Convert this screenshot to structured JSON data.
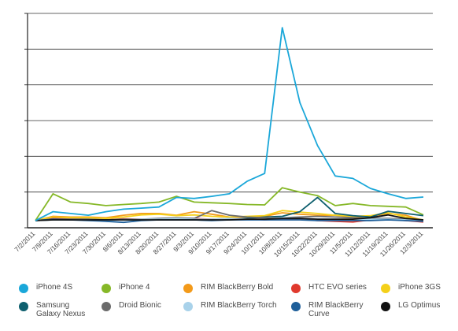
{
  "chart_data": {
    "type": "line",
    "title": "",
    "xlabel": "",
    "ylabel": "",
    "ylim": [
      0,
      6
    ],
    "grid": "horizontal",
    "legend_position": "bottom",
    "categories": [
      "7/2/2011",
      "7/9/2011",
      "7/16/2011",
      "7/23/2011",
      "7/30/2011",
      "8/6/2011",
      "8/13/2011",
      "8/20/2011",
      "8/27/2011",
      "9/3/2011",
      "9/10/2011",
      "9/17/2011",
      "9/24/2011",
      "10/1/2011",
      "10/8/2011",
      "10/15/2011",
      "10/22/2011",
      "10/29/2011",
      "11/5/2011",
      "11/12/2011",
      "11/19/2011",
      "11/26/2011",
      "12/3/2011"
    ],
    "series": [
      {
        "name": "iPhone 4S",
        "color": "#1aa7d9",
        "values": [
          0.2,
          0.45,
          0.4,
          0.35,
          0.45,
          0.52,
          0.55,
          0.58,
          0.85,
          0.82,
          0.88,
          0.95,
          1.3,
          1.52,
          5.6,
          3.5,
          2.3,
          1.45,
          1.38,
          1.1,
          0.95,
          0.82,
          0.86
        ]
      },
      {
        "name": "iPhone 4",
        "color": "#86b828",
        "values": [
          0.2,
          0.95,
          0.72,
          0.68,
          0.62,
          0.65,
          0.68,
          0.72,
          0.88,
          0.72,
          0.7,
          0.68,
          0.65,
          0.64,
          1.12,
          1.0,
          0.9,
          0.62,
          0.68,
          0.62,
          0.6,
          0.58,
          0.36
        ]
      },
      {
        "name": "RIM BlackBerry Bold",
        "color": "#f39a1a",
        "values": [
          0.2,
          0.32,
          0.3,
          0.3,
          0.28,
          0.35,
          0.4,
          0.4,
          0.35,
          0.45,
          0.38,
          0.3,
          0.3,
          0.32,
          0.42,
          0.38,
          0.35,
          0.35,
          0.3,
          0.32,
          0.4,
          0.35,
          0.2
        ]
      },
      {
        "name": "HTC EVO series",
        "color": "#e0392d",
        "values": [
          0.2,
          0.28,
          0.25,
          0.24,
          0.22,
          0.25,
          0.24,
          0.22,
          0.25,
          0.26,
          0.24,
          0.26,
          0.25,
          0.22,
          0.25,
          0.24,
          0.2,
          0.18,
          0.16,
          0.22,
          0.24,
          0.2,
          0.16
        ]
      },
      {
        "name": "iPhone 3GS",
        "color": "#f4d01a",
        "values": [
          0.2,
          0.3,
          0.28,
          0.28,
          0.26,
          0.3,
          0.36,
          0.38,
          0.34,
          0.36,
          0.32,
          0.3,
          0.32,
          0.34,
          0.48,
          0.44,
          0.4,
          0.35,
          0.32,
          0.34,
          0.42,
          0.3,
          0.22
        ]
      },
      {
        "name": "Samsung\nGalaxy Nexus",
        "color": "#0e5f6e",
        "values": [
          0.2,
          0.22,
          0.22,
          0.22,
          0.22,
          0.22,
          0.22,
          0.22,
          0.22,
          0.22,
          0.22,
          0.24,
          0.26,
          0.3,
          0.32,
          0.45,
          0.85,
          0.4,
          0.34,
          0.3,
          0.46,
          0.4,
          0.34
        ]
      },
      {
        "name": "Droid Bionic",
        "color": "#6b6b6b",
        "values": [
          0.2,
          0.24,
          0.24,
          0.24,
          0.22,
          0.24,
          0.24,
          0.26,
          0.28,
          0.26,
          0.48,
          0.35,
          0.3,
          0.28,
          0.28,
          0.3,
          0.32,
          0.3,
          0.28,
          0.26,
          0.26,
          0.24,
          0.22
        ]
      },
      {
        "name": "RIM BlackBerry Torch",
        "color": "#a9d2ea",
        "values": [
          0.2,
          0.22,
          0.22,
          0.22,
          0.2,
          0.22,
          0.24,
          0.24,
          0.26,
          0.24,
          0.24,
          0.26,
          0.24,
          0.24,
          0.28,
          0.26,
          0.24,
          0.24,
          0.22,
          0.24,
          0.24,
          0.22,
          0.2
        ]
      },
      {
        "name": "RIM BlackBerry\nCurve",
        "color": "#1f5f9a",
        "values": [
          0.2,
          0.24,
          0.22,
          0.2,
          0.18,
          0.15,
          0.2,
          0.22,
          0.22,
          0.22,
          0.2,
          0.22,
          0.22,
          0.22,
          0.22,
          0.22,
          0.2,
          0.2,
          0.2,
          0.2,
          0.22,
          0.2,
          0.18
        ]
      },
      {
        "name": "LG Optimus",
        "color": "#111111",
        "values": [
          0.2,
          0.22,
          0.22,
          0.22,
          0.22,
          0.22,
          0.22,
          0.22,
          0.22,
          0.22,
          0.22,
          0.22,
          0.24,
          0.24,
          0.26,
          0.26,
          0.24,
          0.24,
          0.24,
          0.28,
          0.36,
          0.26,
          0.22
        ]
      }
    ]
  }
}
